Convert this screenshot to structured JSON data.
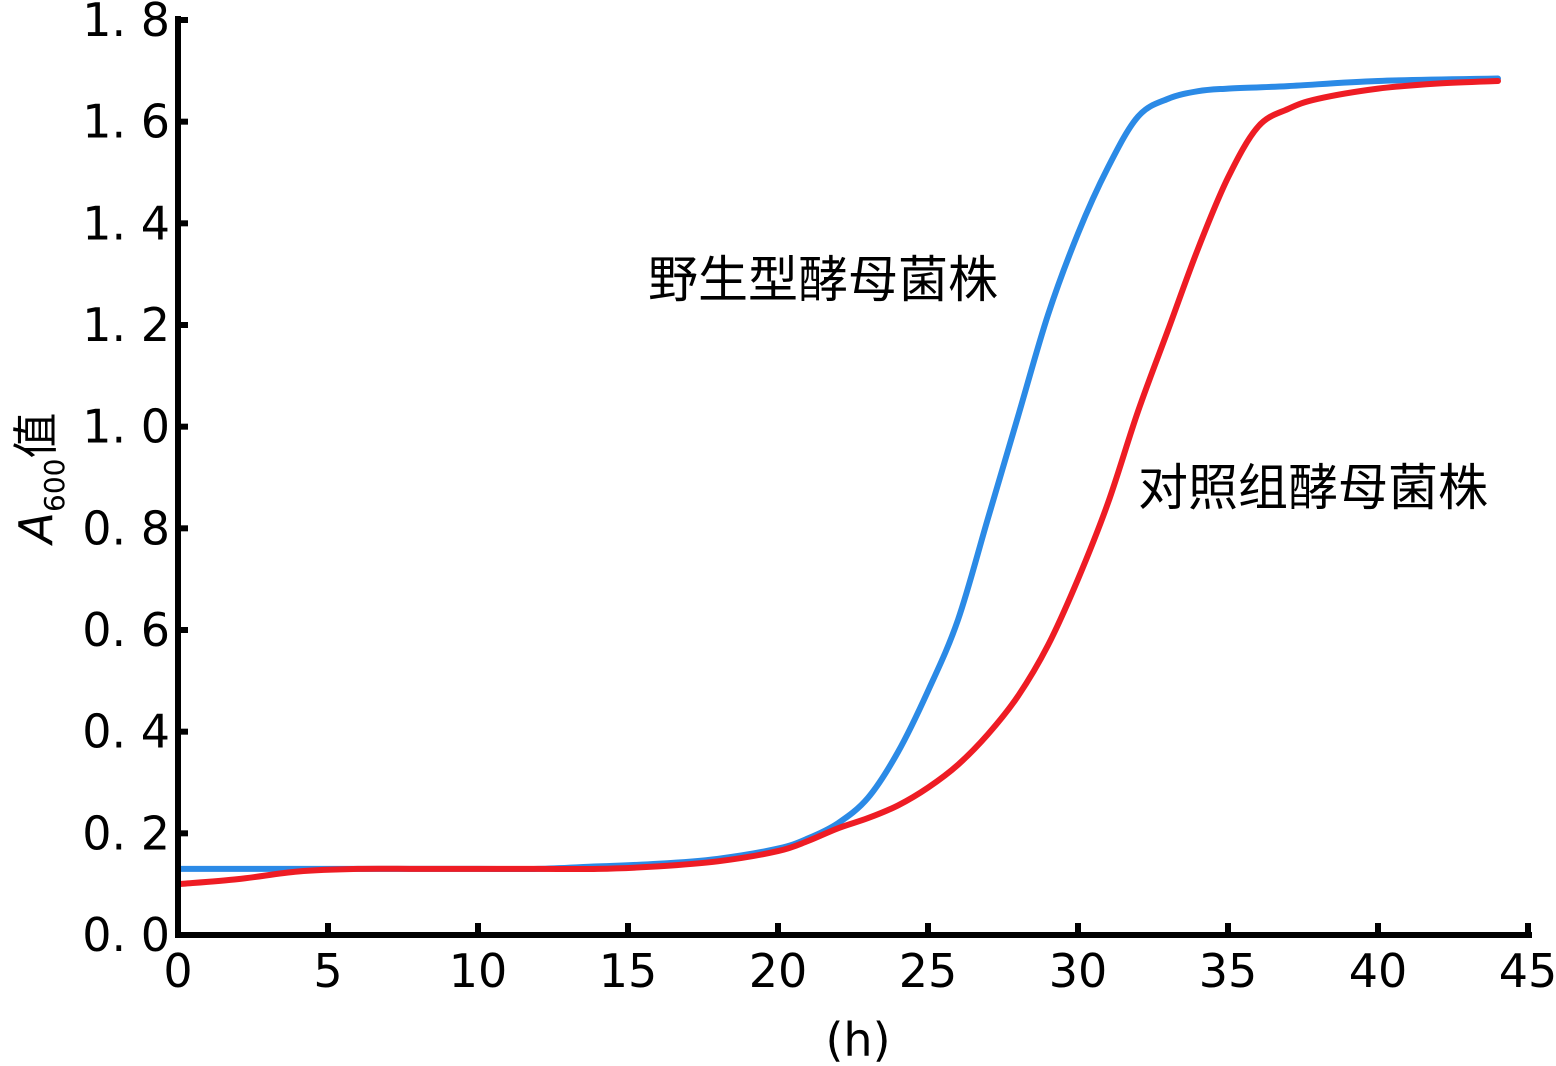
{
  "chart_data": {
    "type": "line",
    "xlabel": "(h)",
    "ylabel_main": "A",
    "ylabel_subscript": "600",
    "ylabel_suffix": "值",
    "xlim": [
      0,
      45
    ],
    "ylim": [
      0,
      1.8
    ],
    "xticks": [
      0,
      5,
      10,
      15,
      20,
      25,
      30,
      35,
      40,
      45
    ],
    "yticks": [
      0.0,
      0.2,
      0.4,
      0.6,
      0.8,
      1.0,
      1.2,
      1.4,
      1.6,
      1.8
    ],
    "ytick_labels": [
      "0. 0",
      "0. 2",
      "0. 4",
      "0. 6",
      "0. 8",
      "1. 0",
      "1. 2",
      "1. 4",
      "1. 6",
      "1. 8"
    ],
    "grid": false,
    "legend": "none",
    "series": [
      {
        "name": "野生型酵母菌株",
        "color": "#2b8ae6",
        "x": [
          0,
          2,
          4,
          6,
          8,
          10,
          12,
          14,
          16,
          18,
          20,
          21,
          22,
          23,
          24,
          25,
          26,
          27,
          28,
          29,
          30,
          31,
          32,
          33,
          34,
          35,
          37,
          40,
          44
        ],
        "y": [
          0.13,
          0.13,
          0.13,
          0.13,
          0.13,
          0.13,
          0.13,
          0.135,
          0.14,
          0.15,
          0.17,
          0.19,
          0.22,
          0.27,
          0.36,
          0.48,
          0.62,
          0.82,
          1.02,
          1.22,
          1.38,
          1.51,
          1.61,
          1.645,
          1.66,
          1.665,
          1.67,
          1.68,
          1.685
        ]
      },
      {
        "name": "对照组酵母菌株",
        "color": "#ee1c24",
        "x": [
          0,
          2,
          4,
          6,
          8,
          10,
          12,
          14,
          16,
          18,
          20,
          21,
          22,
          23,
          24,
          25,
          26,
          27,
          28,
          29,
          30,
          31,
          32,
          33,
          34,
          35,
          36,
          37,
          38,
          40,
          42,
          44
        ],
        "y": [
          0.1,
          0.11,
          0.125,
          0.13,
          0.13,
          0.13,
          0.13,
          0.13,
          0.135,
          0.145,
          0.165,
          0.185,
          0.21,
          0.23,
          0.255,
          0.29,
          0.335,
          0.395,
          0.47,
          0.57,
          0.7,
          0.85,
          1.03,
          1.19,
          1.35,
          1.49,
          1.59,
          1.625,
          1.645,
          1.665,
          1.675,
          1.68
        ]
      }
    ]
  }
}
